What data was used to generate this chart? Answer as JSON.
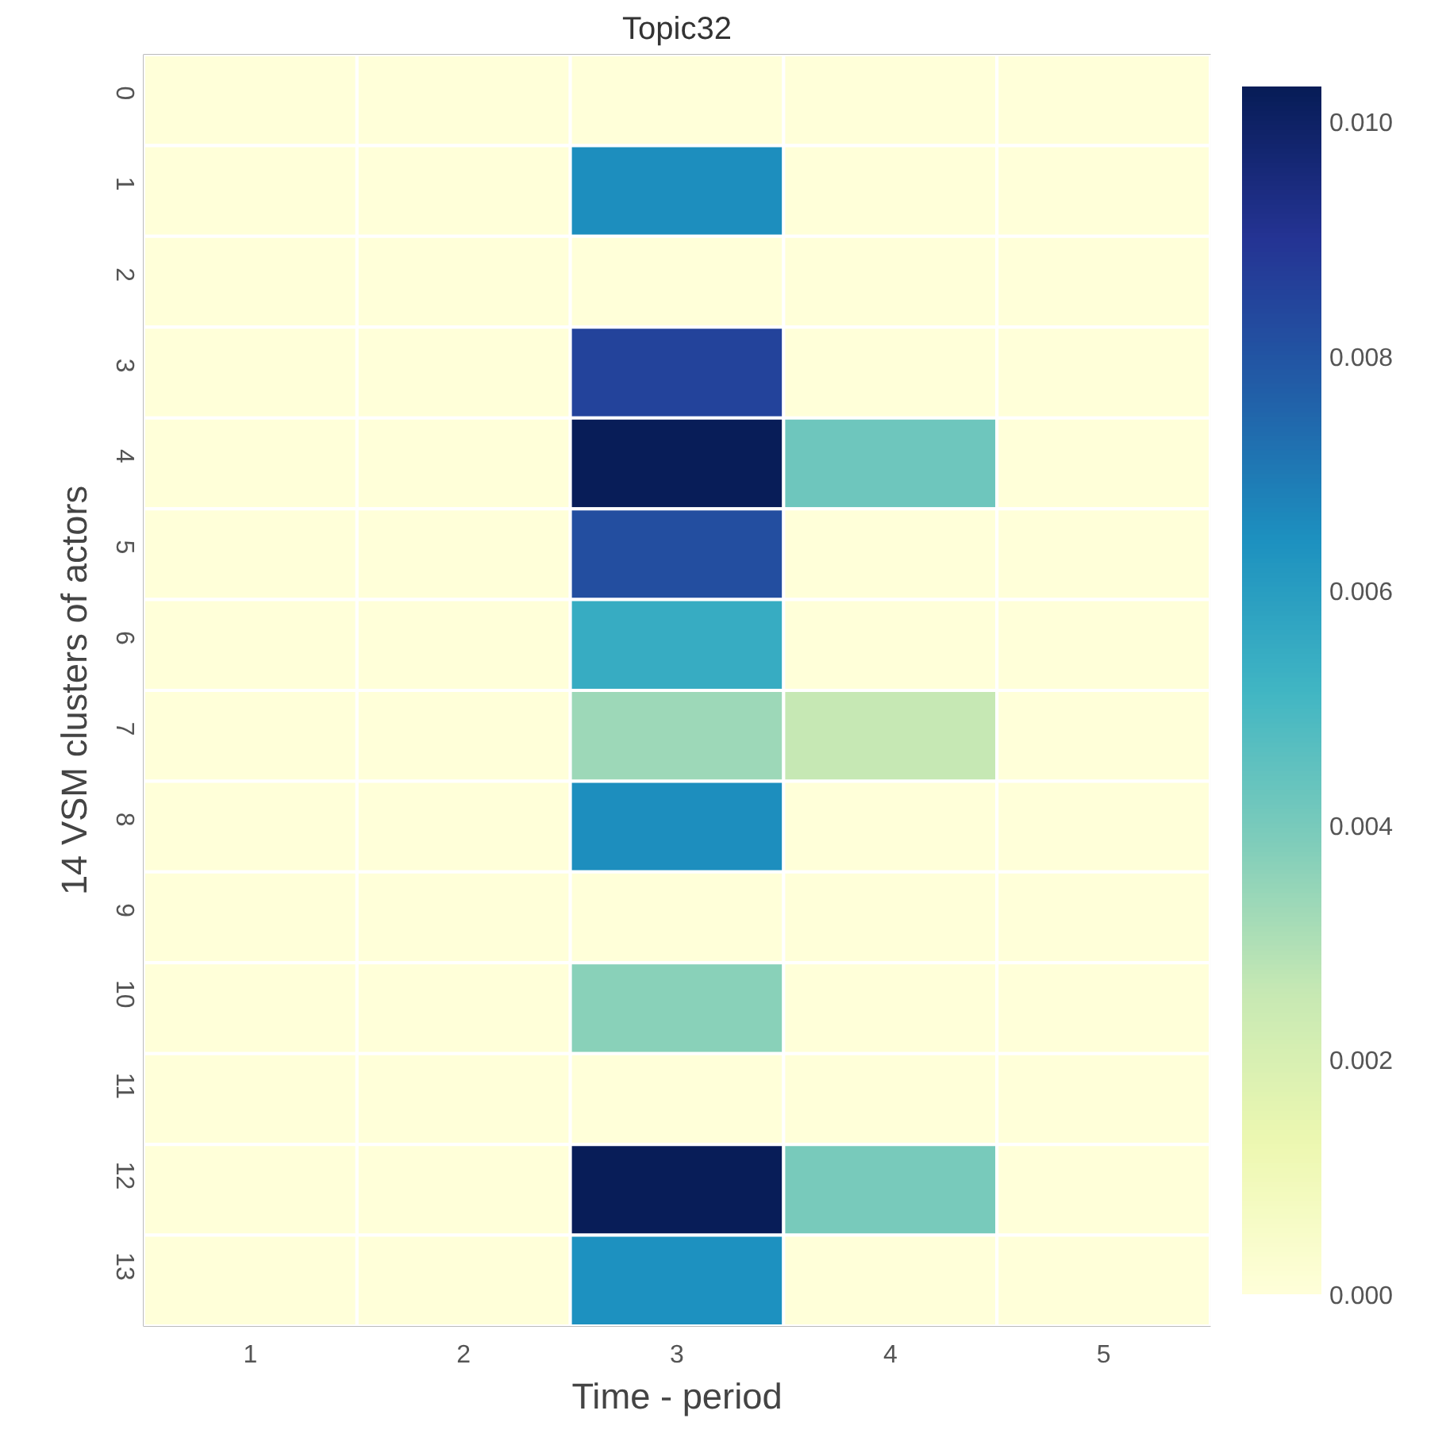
{
  "chart_data": {
    "type": "heatmap",
    "title": "Topic32",
    "xlabel": "Time - period",
    "ylabel": "14 VSM clusters of actors",
    "categories": [
      "1",
      "2",
      "3",
      "4",
      "5"
    ],
    "y_categories": [
      "0",
      "1",
      "2",
      "3",
      "4",
      "5",
      "6",
      "7",
      "8",
      "9",
      "10",
      "11",
      "12",
      "13"
    ],
    "cells": [
      [
        0,
        0,
        0,
        0,
        0
      ],
      [
        0,
        0,
        0.0065,
        0,
        0
      ],
      [
        0,
        0,
        0,
        0,
        0
      ],
      [
        0,
        0,
        0.0085,
        0,
        0
      ],
      [
        0,
        0,
        0.0103,
        0.0042,
        0
      ],
      [
        0,
        0,
        0.0082,
        0,
        0
      ],
      [
        0,
        0,
        0.0055,
        0,
        0
      ],
      [
        0,
        0,
        0.0033,
        0.0026,
        0
      ],
      [
        0,
        0,
        0.0065,
        0,
        0
      ],
      [
        0,
        0,
        0,
        0,
        0
      ],
      [
        0,
        0,
        0.0037,
        0,
        0
      ],
      [
        0,
        0,
        0,
        0,
        0
      ],
      [
        0,
        0,
        0.0103,
        0.004,
        0
      ],
      [
        0,
        0,
        0.0064,
        0,
        0
      ]
    ],
    "clim": [
      0,
      0.0103
    ],
    "cticks": [
      {
        "value": 0,
        "label": "0.000"
      },
      {
        "value": 0.002,
        "label": "0.002"
      },
      {
        "value": 0.004,
        "label": "0.004"
      },
      {
        "value": 0.006,
        "label": "0.006"
      },
      {
        "value": 0.008,
        "label": "0.008"
      },
      {
        "value": 0.01,
        "label": "0.010"
      }
    ]
  }
}
